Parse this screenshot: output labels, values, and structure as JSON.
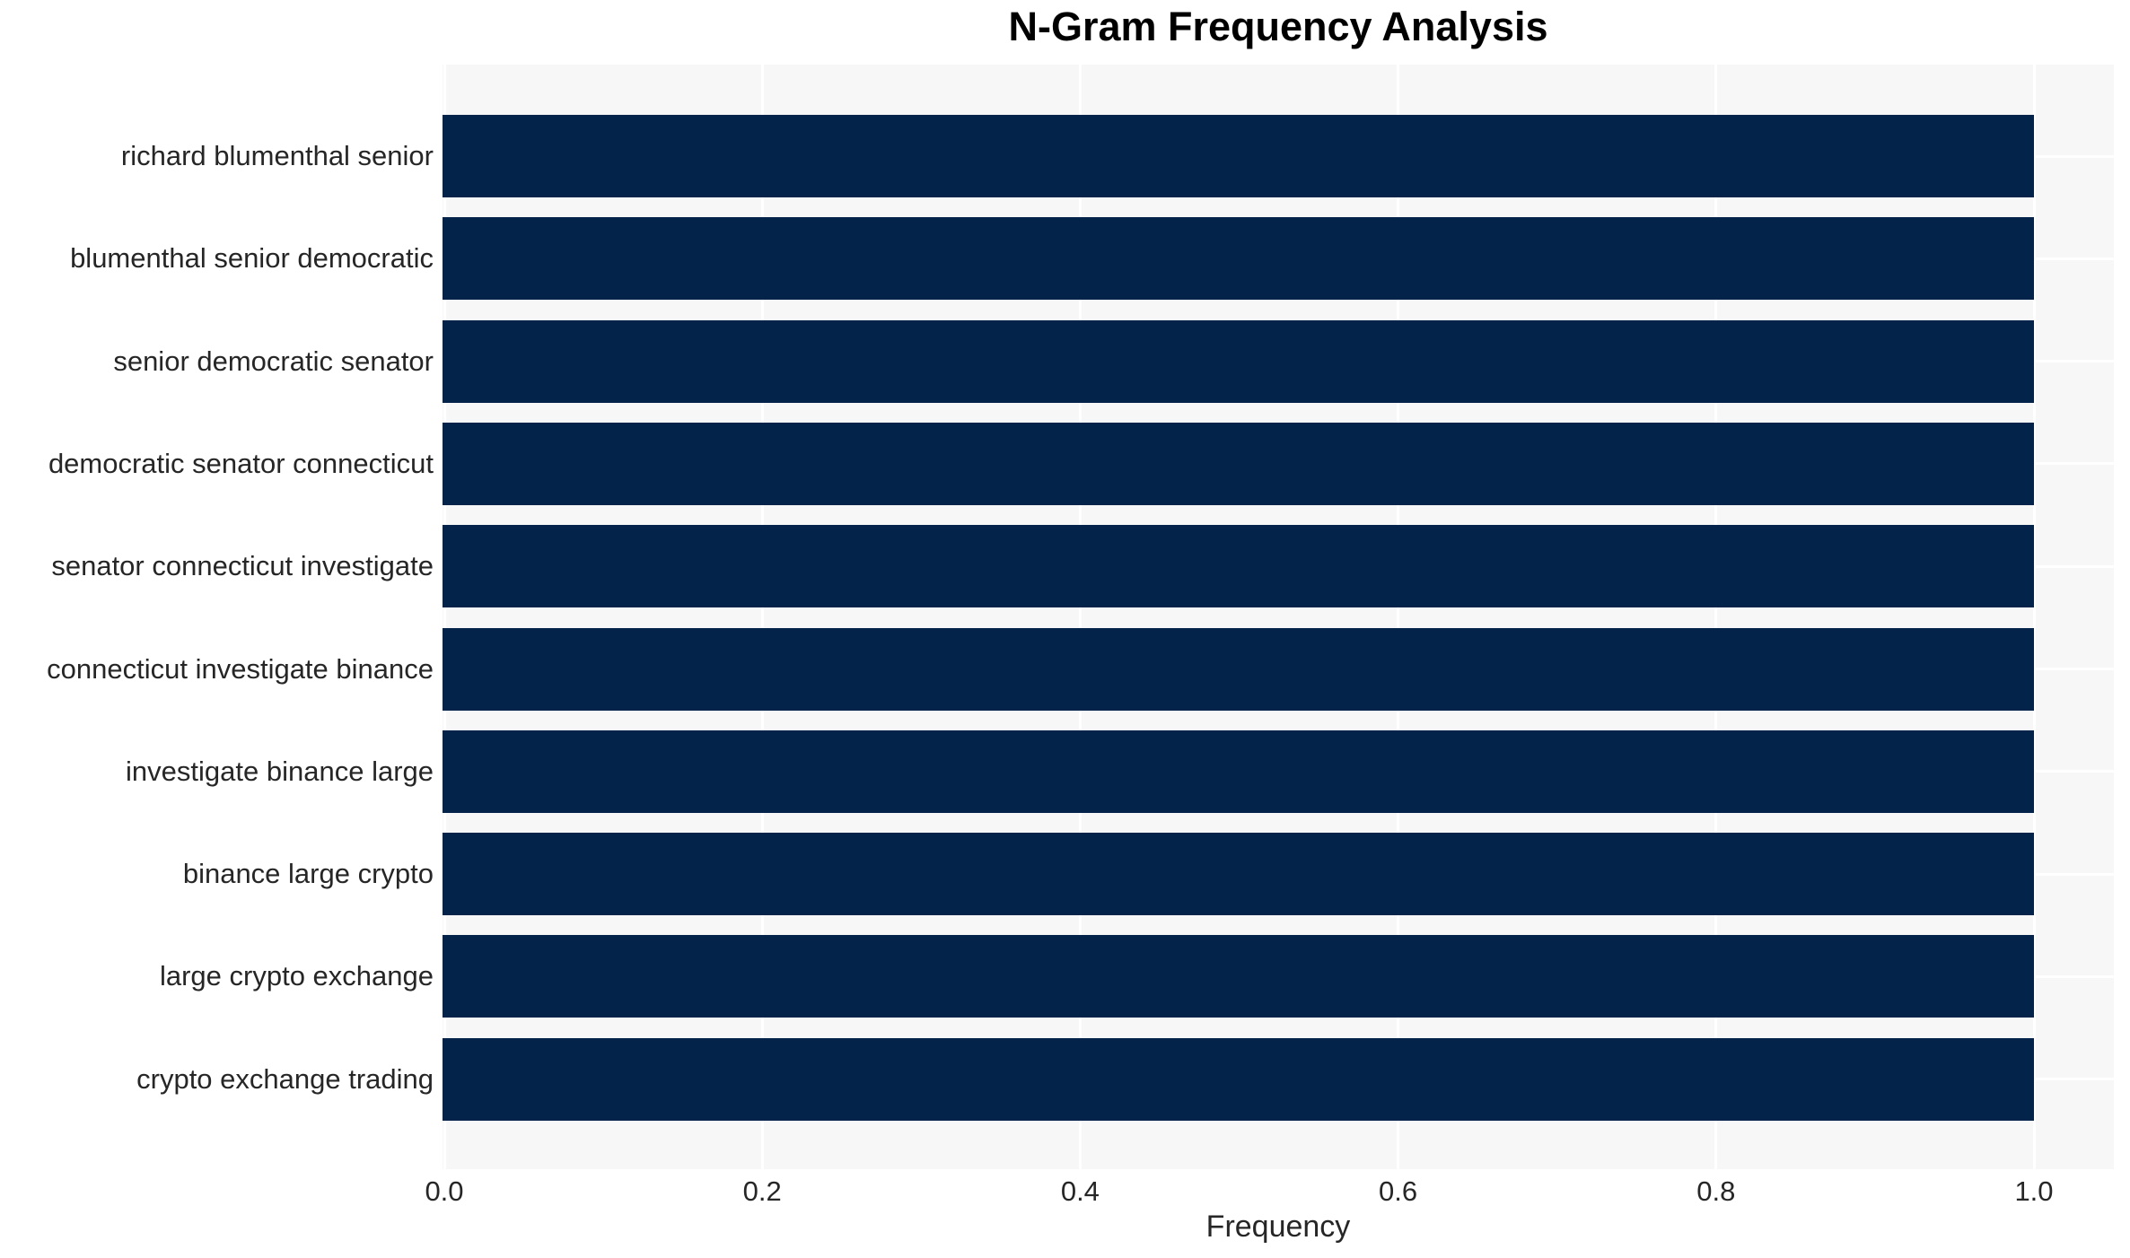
{
  "chart_data": {
    "type": "bar",
    "orientation": "horizontal",
    "title": "N-Gram Frequency Analysis",
    "xlabel": "Frequency",
    "ylabel": "",
    "categories": [
      "richard blumenthal senior",
      "blumenthal senior democratic",
      "senior democratic senator",
      "democratic senator connecticut",
      "senator connecticut investigate",
      "connecticut investigate binance",
      "investigate binance large",
      "binance large crypto",
      "large crypto exchange",
      "crypto exchange trading"
    ],
    "values": [
      1.0,
      1.0,
      1.0,
      1.0,
      1.0,
      1.0,
      1.0,
      1.0,
      1.0,
      1.0
    ],
    "xticks": [
      0.0,
      0.2,
      0.4,
      0.6,
      0.8,
      1.0
    ],
    "xtick_labels": [
      "0.0",
      "0.2",
      "0.4",
      "0.6",
      "0.8",
      "1.0"
    ],
    "xlim": [
      0,
      1.05
    ],
    "grid": true,
    "legend_position": "none",
    "colors": {
      "bar": "#03234b",
      "plot_background": "#f7f7f7",
      "figure_background": "#ffffff",
      "gridline": "#ffffff",
      "tick_text": "#262626",
      "title_text": "#000000"
    }
  }
}
